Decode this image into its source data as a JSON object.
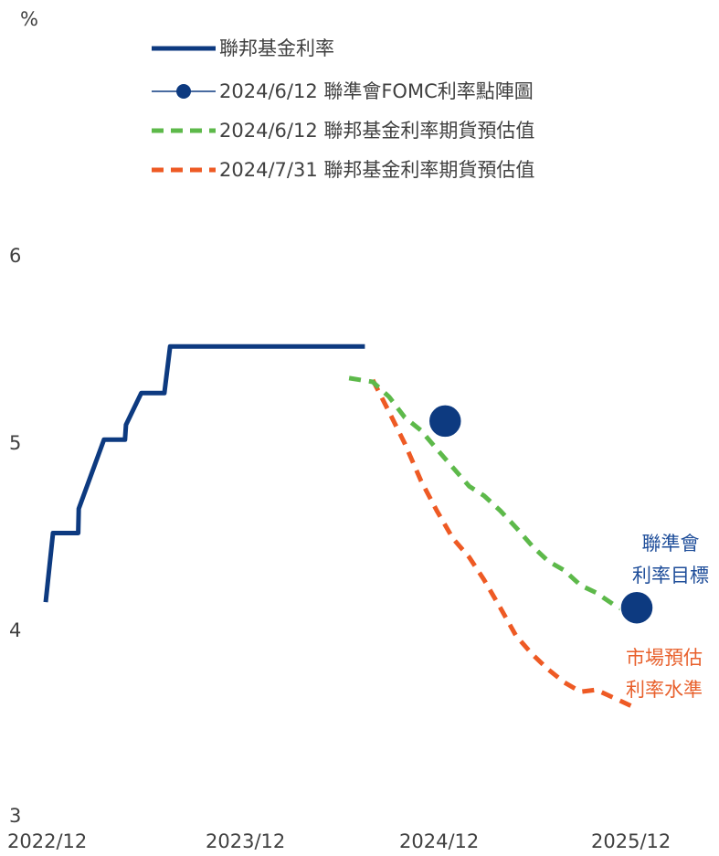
{
  "chart_data": {
    "type": "line",
    "ylabel": "%",
    "ylim": [
      3,
      6
    ],
    "y_ticks": [
      "6",
      "5",
      "4",
      "3"
    ],
    "x_ticks": [
      "2022/12",
      "2023/12",
      "2024/12",
      "2025/12"
    ],
    "legend_position": "top",
    "series": [
      {
        "name": "聯邦基金利率",
        "style": "solid-line",
        "color": "#0D3A80",
        "points": [
          [
            "2022-12-01",
            4.13
          ],
          [
            "2022-12-15",
            4.5
          ],
          [
            "2023-02-01",
            4.5
          ],
          [
            "2023-02-02",
            4.63
          ],
          [
            "2023-03-22",
            5.0
          ],
          [
            "2023-05-01",
            5.0
          ],
          [
            "2023-05-03",
            5.08
          ],
          [
            "2023-06-01",
            5.25
          ],
          [
            "2023-07-15",
            5.25
          ],
          [
            "2023-07-26",
            5.5
          ],
          [
            "2024-07-31",
            5.5
          ]
        ]
      },
      {
        "name": "2024/6/12 聯準會FOMC利率點陣圖",
        "style": "dots",
        "color": "#0D3A80",
        "points": [
          [
            "2024-12-31",
            5.1
          ],
          [
            "2025-12-31",
            4.1
          ]
        ]
      },
      {
        "name": "2024/6/12 聯邦基金利率期貨預估值",
        "style": "dashed-line",
        "color": "#5DB94A",
        "points": [
          [
            "2024-07-01",
            5.33
          ],
          [
            "2024-08-15",
            5.31
          ],
          [
            "2024-09-15",
            5.23
          ],
          [
            "2024-10-15",
            5.12
          ],
          [
            "2024-11-15",
            5.05
          ],
          [
            "2024-12-15",
            4.95
          ],
          [
            "2025-01-15",
            4.85
          ],
          [
            "2025-02-15",
            4.75
          ],
          [
            "2025-03-15",
            4.7
          ],
          [
            "2025-04-15",
            4.62
          ],
          [
            "2025-05-15",
            4.53
          ],
          [
            "2025-06-15",
            4.43
          ],
          [
            "2025-07-15",
            4.35
          ],
          [
            "2025-08-15",
            4.3
          ],
          [
            "2025-09-15",
            4.22
          ],
          [
            "2025-10-15",
            4.18
          ],
          [
            "2025-11-15",
            4.12
          ],
          [
            "2025-12-31",
            4.05
          ]
        ]
      },
      {
        "name": "2024/7/31 聯邦基金利率期貨預估值",
        "style": "dashed-line",
        "color": "#EE5A24",
        "points": [
          [
            "2024-08-15",
            5.32
          ],
          [
            "2024-09-15",
            5.15
          ],
          [
            "2024-10-15",
            4.98
          ],
          [
            "2024-11-15",
            4.78
          ],
          [
            "2024-12-15",
            4.62
          ],
          [
            "2025-01-15",
            4.47
          ],
          [
            "2025-02-15",
            4.37
          ],
          [
            "2025-03-15",
            4.25
          ],
          [
            "2025-04-15",
            4.1
          ],
          [
            "2025-05-15",
            3.95
          ],
          [
            "2025-06-15",
            3.85
          ],
          [
            "2025-07-15",
            3.77
          ],
          [
            "2025-08-15",
            3.7
          ],
          [
            "2025-09-15",
            3.65
          ],
          [
            "2025-10-15",
            3.66
          ],
          [
            "2025-11-15",
            3.62
          ],
          [
            "2025-12-31",
            3.56
          ]
        ]
      }
    ],
    "annotations": [
      {
        "lines": [
          "聯準會",
          "利率目標"
        ],
        "color": "#1F4E9A"
      },
      {
        "lines": [
          "市場預估",
          "利率水準"
        ],
        "color": "#E8602C"
      }
    ]
  }
}
